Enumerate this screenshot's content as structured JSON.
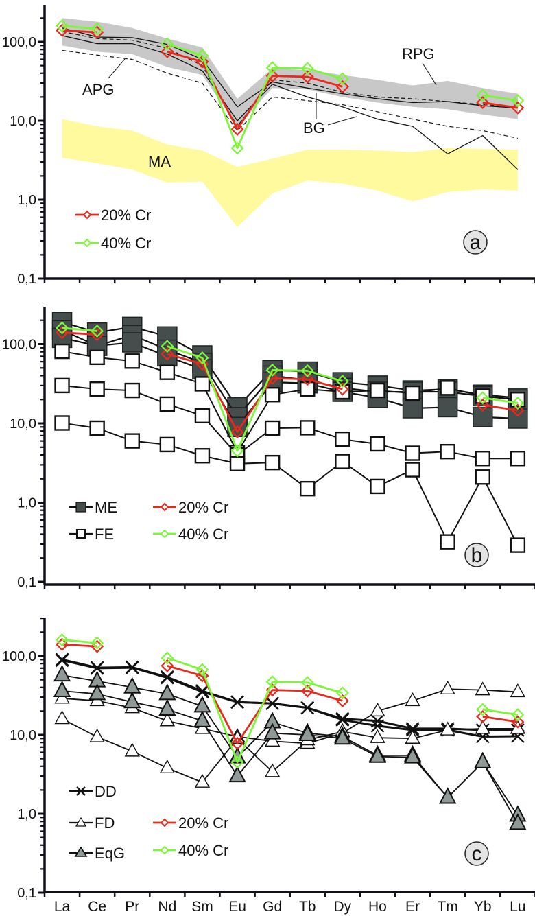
{
  "chart_data": [
    {
      "type": "line",
      "panel": "a",
      "panel_label": "a",
      "yscale": "log",
      "ylim": [
        0.1,
        300
      ],
      "yticks": [
        "100,0",
        "10,0",
        "1,0",
        "0,1"
      ],
      "ytick_values": [
        100,
        10,
        1,
        0.1
      ],
      "categories": [
        "La",
        "Ce",
        "Pr",
        "Nd",
        "Sm",
        "Eu",
        "Gd",
        "Tb",
        "Dy",
        "Ho",
        "Er",
        "Tm",
        "Yb",
        "Lu"
      ],
      "show_xlabels": false,
      "bands": [
        {
          "name": "RPG",
          "color": "#c8c8c8",
          "upper": [
            200,
            180,
            150,
            110,
            85,
            19,
            46,
            44,
            38,
            33,
            28,
            32,
            26,
            22
          ],
          "lower": [
            90,
            75,
            70,
            48,
            38,
            8.5,
            26,
            25,
            20,
            17,
            15,
            14,
            12,
            10.5
          ]
        },
        {
          "name": "MA",
          "color": "#fffa9e",
          "upper": [
            10.5,
            8.5,
            7.5,
            5.0,
            4.2,
            2.6,
            3.3,
            4.3,
            4.3,
            4.2,
            4.0,
            4.5,
            4.4,
            4.3
          ],
          "lower": [
            3.4,
            2.9,
            2.4,
            1.65,
            1.7,
            0.45,
            1.2,
            1.75,
            1.6,
            1.3,
            0.95,
            1.25,
            1.35,
            1.3
          ]
        }
      ],
      "series": [
        {
          "name": "APG/RPG upper",
          "style": "solid-thin",
          "values": [
            150,
            115,
            113,
            93,
            60,
            15,
            31,
            26,
            22,
            19,
            17,
            17.5,
            15.5,
            14.5
          ]
        },
        {
          "name": "BG solid",
          "style": "solid-thin",
          "values": [
            120,
            95,
            95,
            70,
            43,
            10,
            29,
            20,
            15,
            10.5,
            8.5,
            3.8,
            6.5,
            2.4
          ]
        },
        {
          "name": "dashed upper",
          "style": "dashed",
          "values": [
            135,
            110,
            105,
            83,
            50,
            8.5,
            33,
            30,
            23,
            20,
            19,
            17.5,
            16,
            15
          ]
        },
        {
          "name": "APG dashed",
          "style": "dashed",
          "values": [
            78,
            68,
            60,
            40,
            30,
            7.5,
            20,
            18,
            16,
            13,
            10.5,
            8.5,
            7.5,
            6
          ]
        },
        {
          "name": "20% Cr",
          "style": "red-diamond",
          "values": [
            140,
            132,
            null,
            75,
            56,
            7.8,
            37,
            36,
            27,
            null,
            null,
            null,
            17,
            14.6
          ]
        },
        {
          "name": "40% Cr",
          "style": "green-diamond",
          "values": [
            160,
            146,
            null,
            94,
            67,
            4.5,
            47,
            46,
            34,
            null,
            null,
            null,
            21,
            18
          ]
        }
      ],
      "annotations": [
        "APG",
        "RPG",
        "BG",
        "MA"
      ],
      "legend": [
        {
          "label": "20% Cr",
          "style": "red-diamond"
        },
        {
          "label": "40% Cr",
          "style": "green-diamond"
        }
      ]
    },
    {
      "type": "line",
      "panel": "b",
      "panel_label": "b",
      "yscale": "log",
      "ylim": [
        0.1,
        300
      ],
      "yticks": [
        "100,0",
        "10,0",
        "1,0",
        "0,1"
      ],
      "ytick_values": [
        100,
        10,
        1,
        0.1
      ],
      "categories": [
        "La",
        "Ce",
        "Pr",
        "Nd",
        "Sm",
        "Eu",
        "Gd",
        "Tb",
        "Dy",
        "Ho",
        "Er",
        "Tm",
        "Yb",
        "Lu"
      ],
      "show_xlabels": false,
      "series": [
        {
          "name": "ME",
          "group": "ME",
          "style": "filled-square",
          "values": [
            190,
            140,
            165,
            125,
            72,
            16,
            47,
            45,
            33,
            30,
            26,
            27,
            23,
            21
          ]
        },
        {
          "name": "ME",
          "group": "ME",
          "style": "filled-square",
          "values": [
            150,
            95,
            130,
            85,
            58,
            12,
            40,
            35,
            28,
            25,
            25,
            25,
            22,
            20
          ]
        },
        {
          "name": "ME",
          "group": "ME",
          "style": "filled-square",
          "values": [
            120,
            95,
            105,
            70,
            48,
            9,
            33,
            32,
            25,
            21,
            15.5,
            16,
            12,
            11.5
          ]
        },
        {
          "name": "FE",
          "group": "FE",
          "style": "open-square",
          "values": [
            81,
            68,
            61,
            44,
            31.5,
            4.3,
            23,
            27,
            25,
            26,
            24,
            28,
            22,
            20
          ]
        },
        {
          "name": "FE",
          "group": "FE",
          "style": "open-square",
          "values": [
            30,
            27,
            26,
            17.5,
            12.5,
            4.0,
            8.7,
            8.8,
            6.3,
            5.5,
            4.2,
            4.4,
            3.6,
            3.6
          ]
        },
        {
          "name": "FE",
          "group": "FE",
          "style": "open-square",
          "values": [
            10.1,
            8.7,
            6.0,
            5.4,
            3.9,
            3.1,
            3.2,
            1.5,
            3.3,
            1.6,
            2.6,
            0.32,
            2.1,
            0.29
          ]
        },
        {
          "name": "20% Cr",
          "style": "red-diamond",
          "values": [
            140,
            132,
            null,
            75,
            56,
            7.8,
            37,
            36,
            27,
            null,
            null,
            null,
            17,
            14.6
          ]
        },
        {
          "name": "40% Cr",
          "style": "green-diamond",
          "values": [
            160,
            146,
            null,
            94,
            67,
            4.5,
            47,
            46,
            34,
            null,
            null,
            null,
            21,
            18
          ]
        }
      ],
      "legend": [
        {
          "label": "ME",
          "style": "filled-square"
        },
        {
          "label": "FE",
          "style": "open-square"
        },
        {
          "label": "20% Cr",
          "style": "red-diamond"
        },
        {
          "label": "40% Cr",
          "style": "green-diamond"
        }
      ]
    },
    {
      "type": "line",
      "panel": "c",
      "panel_label": "c",
      "yscale": "log",
      "ylim": [
        0.1,
        300
      ],
      "yticks": [
        "100,0",
        "10,0",
        "1,0",
        "0,1"
      ],
      "ytick_values": [
        100,
        10,
        1,
        0.1
      ],
      "categories": [
        "La",
        "Ce",
        "Pr",
        "Nd",
        "Sm",
        "Eu",
        "Gd",
        "Tb",
        "Dy",
        "Ho",
        "Er",
        "Tm",
        "Yb",
        "Lu"
      ],
      "show_xlabels": true,
      "series": [
        {
          "name": "DD",
          "group": "DD",
          "style": "cross",
          "values": [
            90,
            71,
            72,
            54,
            36,
            26,
            25,
            22,
            15.5,
            13,
            11.5,
            11.5,
            9.5,
            9.6
          ]
        },
        {
          "name": "DD",
          "group": "DD",
          "style": "cross",
          "values": [
            88,
            70,
            71,
            53,
            35,
            26,
            25,
            22,
            16,
            15,
            12,
            12,
            11.5,
            11.5
          ]
        },
        {
          "name": "FD",
          "group": "FD",
          "style": "open-triangle",
          "values": [
            29,
            27,
            22,
            15,
            12,
            9.5,
            8.3,
            7.8,
            10.5,
            20,
            27,
            38,
            37,
            35
          ]
        },
        {
          "name": "FD",
          "group": "FD",
          "style": "open-triangle",
          "values": [
            16,
            9.4,
            6.2,
            3.8,
            2.5,
            9.0,
            3.4,
            8.6,
            11,
            9.2,
            9.0,
            11.5,
            12,
            12
          ]
        },
        {
          "name": "EqG",
          "group": "EqG",
          "style": "filled-triangle",
          "values": [
            57,
            48,
            40,
            33,
            23,
            5.2,
            14.5,
            10.5,
            9.5,
            5.5,
            5.5,
            1.6,
            4.5,
            0.95
          ]
        },
        {
          "name": "EqG",
          "group": "EqG",
          "style": "filled-triangle",
          "values": [
            36,
            33,
            26,
            21,
            15,
            3.0,
            10.5,
            10,
            9,
            5.3,
            5.2,
            1.6,
            4.5,
            0.75
          ]
        },
        {
          "name": "20% Cr",
          "style": "red-diamond",
          "values": [
            140,
            132,
            null,
            75,
            56,
            7.8,
            37,
            36,
            27,
            null,
            null,
            null,
            17,
            14.6
          ]
        },
        {
          "name": "40% Cr",
          "style": "green-diamond",
          "values": [
            160,
            146,
            null,
            94,
            67,
            4.5,
            47,
            46,
            34,
            null,
            null,
            null,
            21,
            18
          ]
        }
      ],
      "legend": [
        {
          "label": "DD",
          "style": "cross"
        },
        {
          "label": "FD",
          "style": "open-triangle"
        },
        {
          "label": "EqG",
          "style": "filled-triangle"
        },
        {
          "label": "20% Cr",
          "style": "red-diamond"
        },
        {
          "label": "40% Cr",
          "style": "green-diamond"
        }
      ]
    }
  ],
  "colors": {
    "red": "#e8291c",
    "green": "#7cf53a",
    "me_fill": "#454d4d",
    "eqg_fill": "#8f9a98",
    "rpg_band": "#c8c8c8",
    "ma_band": "#fffa9e",
    "axis": "#0f0f1a"
  }
}
